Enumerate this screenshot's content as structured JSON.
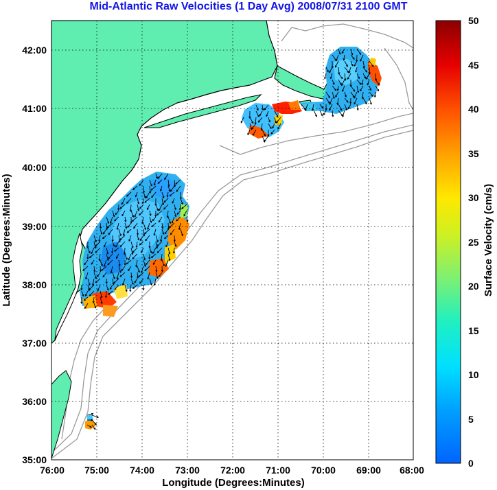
{
  "title": "Mid-Atlantic Raw Velocities (1 Day Avg) 2008/07/31 2100 GMT",
  "x_label": "Longitude (Degrees:Minutes)",
  "y_label": "Latitude (Degrees:Minutes)",
  "colorbar_label": "Surface Velocity (cm/s)",
  "x_ticks": [
    "76:00",
    "75:00",
    "74:00",
    "73:00",
    "72:00",
    "71:00",
    "70:00",
    "69:00",
    "68:00"
  ],
  "y_ticks": [
    "42:00",
    "41:00",
    "40:00",
    "39:00",
    "38:00",
    "37:00",
    "36:00",
    "35:00"
  ],
  "colorbar_ticks": [
    "50",
    "45",
    "40",
    "35",
    "30",
    "25",
    "20",
    "15",
    "10",
    "5",
    "0"
  ],
  "chart_data": {
    "type": "heatmap",
    "title": "Mid-Atlantic Raw Velocities (1 Day Avg) 2008/07/31 2100 GMT",
    "xlabel": "Longitude (Degrees:Minutes)",
    "ylabel": "Latitude (Degrees:Minutes)",
    "xlim": [
      -76,
      -68
    ],
    "ylim": [
      35,
      42.5
    ],
    "grid": true,
    "colorbar": {
      "label": "Surface Velocity (cm/s)",
      "range": [
        0,
        50
      ]
    },
    "colors": {
      "land": "#5fedb0",
      "coast": "#000000",
      "bathymetry": "#9a9a9a",
      "grid": "#000000"
    }
  }
}
